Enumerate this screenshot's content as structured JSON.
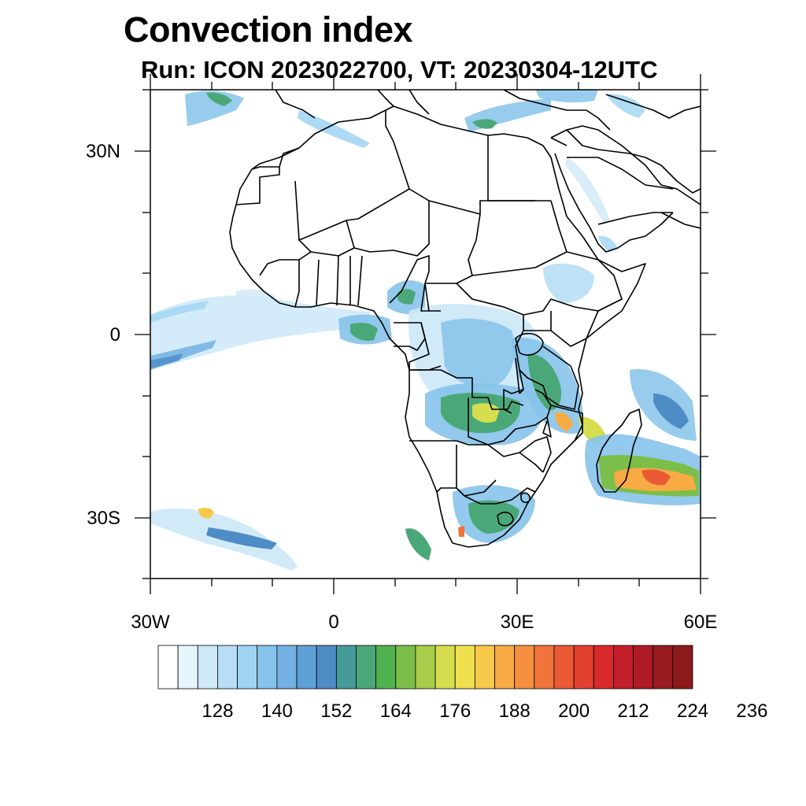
{
  "title": "Convection index",
  "subtitle": "Run: ICON 2023022700,  VT: 20230304-12UTC",
  "map": {
    "lon_range": [
      -30,
      60
    ],
    "lat_range": [
      -40,
      40
    ],
    "y_ticks": [
      {
        "lat": 30,
        "label": "30N"
      },
      {
        "lat": 0,
        "label": "0"
      },
      {
        "lat": -30,
        "label": "30S"
      }
    ],
    "x_ticks": [
      {
        "lon": -30,
        "label": "30W"
      },
      {
        "lon": 0,
        "label": "0"
      },
      {
        "lon": 30,
        "label": "30E"
      },
      {
        "lon": 60,
        "label": "60E"
      }
    ]
  },
  "colorbar": {
    "colors": [
      "#ffffff",
      "#e6f4fc",
      "#cfe9f8",
      "#b7def5",
      "#9ed4f2",
      "#86c3ea",
      "#72b1e2",
      "#5e9fd6",
      "#4e8cc6",
      "#469a99",
      "#4aa878",
      "#4fb24f",
      "#7bbf4a",
      "#a9cd4a",
      "#d6dd4e",
      "#efe050",
      "#f8c84b",
      "#f8ab44",
      "#f49040",
      "#f0743c",
      "#ea5a35",
      "#e2402f",
      "#d92a2b",
      "#c31e29",
      "#ae1a26",
      "#981b22",
      "#8b1a1c"
    ],
    "labels": [
      "128",
      "140",
      "152",
      "164",
      "176",
      "188",
      "200",
      "212",
      "224",
      "236"
    ]
  },
  "map_features": {
    "land_color": "#ffffff",
    "border_color": "#000000",
    "water_color": "#ffffff"
  }
}
